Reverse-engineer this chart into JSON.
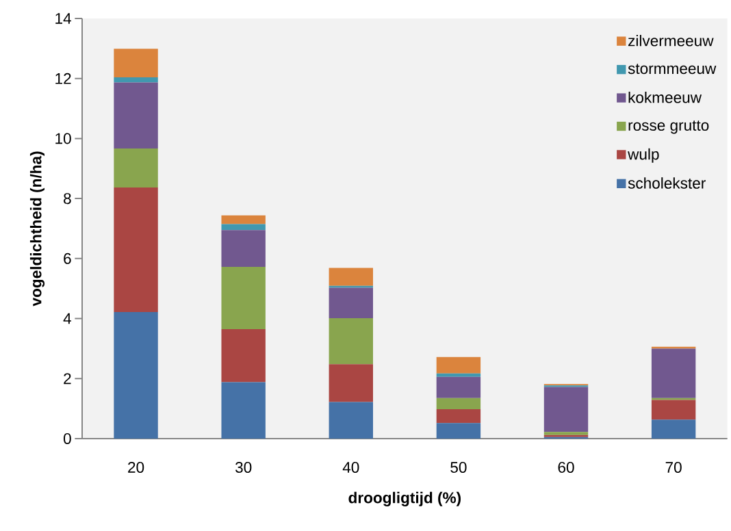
{
  "chart_data": {
    "type": "bar",
    "stacked": true,
    "xlabel": "droogligtijd (%)",
    "ylabel": "vogeldichtheid (n/ha)",
    "categories": [
      "20",
      "30",
      "40",
      "50",
      "60",
      "70"
    ],
    "series": [
      {
        "name": "scholekster",
        "color": "#4572a7",
        "values": [
          4.22,
          1.88,
          1.22,
          0.52,
          0.05,
          0.63
        ]
      },
      {
        "name": "wulp",
        "color": "#aa4643",
        "values": [
          4.15,
          1.77,
          1.26,
          0.46,
          0.07,
          0.66
        ]
      },
      {
        "name": "rosse grutto",
        "color": "#89a54e",
        "values": [
          1.3,
          2.07,
          1.53,
          0.37,
          0.1,
          0.06
        ]
      },
      {
        "name": "kokmeeuw",
        "color": "#71588f",
        "values": [
          2.2,
          1.23,
          1.02,
          0.71,
          1.5,
          1.65
        ]
      },
      {
        "name": "stormmeeuw",
        "color": "#4198af",
        "values": [
          0.17,
          0.2,
          0.06,
          0.11,
          0.05,
          null
        ]
      },
      {
        "name": "zilvermeeuw",
        "color": "#db843d",
        "values": [
          0.95,
          0.29,
          0.6,
          0.55,
          0.05,
          0.06
        ]
      }
    ],
    "ylim": [
      0,
      14
    ],
    "yticks": [
      0,
      2,
      4,
      6,
      8,
      10,
      12,
      14
    ],
    "grid": false,
    "legend": "top right"
  }
}
